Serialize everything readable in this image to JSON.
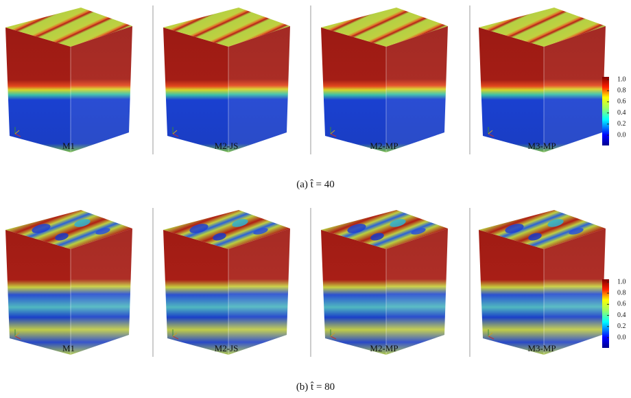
{
  "panels": [
    {
      "caption": "(a) t̂ = 40",
      "labels": [
        "M1",
        "M2-JS",
        "M2-MP",
        "M3-MP"
      ],
      "colorbar_ticks": [
        "1.0",
        "0.8",
        "0.6",
        "0.4",
        "0.2",
        "0.0"
      ]
    },
    {
      "caption": "(b) t̂ = 80",
      "labels": [
        "M1",
        "M2-JS",
        "M2-MP",
        "M3-MP"
      ],
      "colorbar_ticks": [
        "1.0",
        "0.8",
        "0.6",
        "0.4",
        "0.2",
        "0.0"
      ]
    }
  ]
}
